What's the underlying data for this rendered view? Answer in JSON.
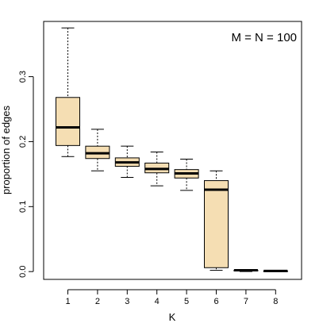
{
  "chart_data": {
    "type": "box",
    "title": "",
    "annotation": "M = N = 100",
    "xlabel": "K",
    "ylabel": "proportion of edges",
    "ylim": [
      -0.012,
      0.385
    ],
    "yticks": [
      0.0,
      0.1,
      0.2,
      0.3
    ],
    "ytick_labels": [
      "0.0",
      "0.1",
      "0.2",
      "0.3"
    ],
    "categories": [
      "1",
      "2",
      "3",
      "4",
      "5",
      "6",
      "7",
      "8"
    ],
    "boxes": [
      {
        "whisker_low": 0.177,
        "q1": 0.194,
        "median": 0.222,
        "q3": 0.268,
        "whisker_high": 0.375
      },
      {
        "whisker_low": 0.155,
        "q1": 0.174,
        "median": 0.182,
        "q3": 0.193,
        "whisker_high": 0.219
      },
      {
        "whisker_low": 0.145,
        "q1": 0.162,
        "median": 0.168,
        "q3": 0.175,
        "whisker_high": 0.193
      },
      {
        "whisker_low": 0.132,
        "q1": 0.152,
        "median": 0.158,
        "q3": 0.167,
        "whisker_high": 0.184
      },
      {
        "whisker_low": 0.125,
        "q1": 0.144,
        "median": 0.151,
        "q3": 0.157,
        "whisker_high": 0.173
      },
      {
        "whisker_low": 0.002,
        "q1": 0.006,
        "median": 0.126,
        "q3": 0.14,
        "whisker_high": 0.155
      },
      {
        "whisker_low": 0.0,
        "q1": 0.001,
        "median": 0.002,
        "q3": 0.002,
        "whisker_high": 0.003
      },
      {
        "whisker_low": 0.0,
        "q1": 0.0,
        "median": 0.001,
        "q3": 0.001,
        "whisker_high": 0.002
      }
    ],
    "colors": {
      "box_fill": "#f5deb3",
      "stroke": "#000000",
      "background": "#ffffff"
    }
  }
}
